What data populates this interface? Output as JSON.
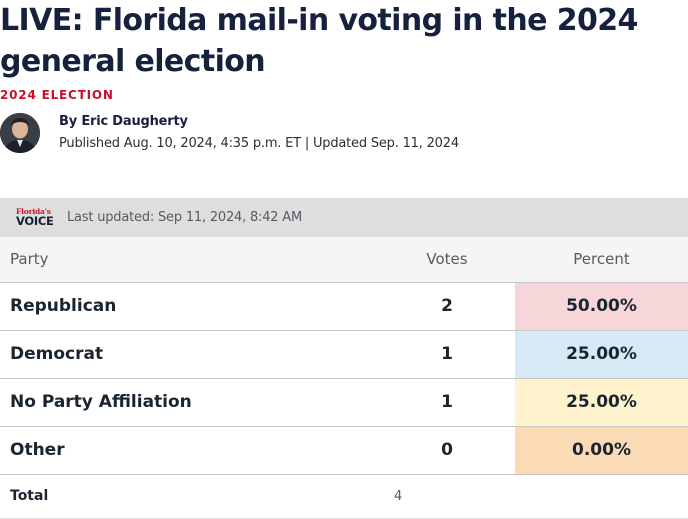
{
  "article": {
    "headline": "LIVE: Florida mail-in voting in the 2024 general election",
    "category": "2024 ELECTION",
    "author_prefix": "By",
    "author": "Eric Daugherty",
    "published": "Published Aug. 10, 2024, 4:35 p.m. ET | Updated Sep. 11, 2024"
  },
  "results": {
    "logo_top": "Florida's",
    "logo_bottom": "VOICE",
    "last_updated": "Last updated: Sep 11, 2024, 8:42 AM",
    "headers": {
      "party": "Party",
      "votes": "Votes",
      "percent": "Percent"
    },
    "rows": [
      {
        "party": "Republican",
        "votes": "2",
        "percent": "50.00%",
        "color": "#f6d6d9"
      },
      {
        "party": "Democrat",
        "votes": "1",
        "percent": "25.00%",
        "color": "#d6e9f5"
      },
      {
        "party": "No Party Affiliation",
        "votes": "1",
        "percent": "25.00%",
        "color": "#fff3cd"
      },
      {
        "party": "Other",
        "votes": "0",
        "percent": "0.00%",
        "color": "#fbdab6"
      }
    ],
    "total_label": "Total",
    "total_votes": "4"
  }
}
